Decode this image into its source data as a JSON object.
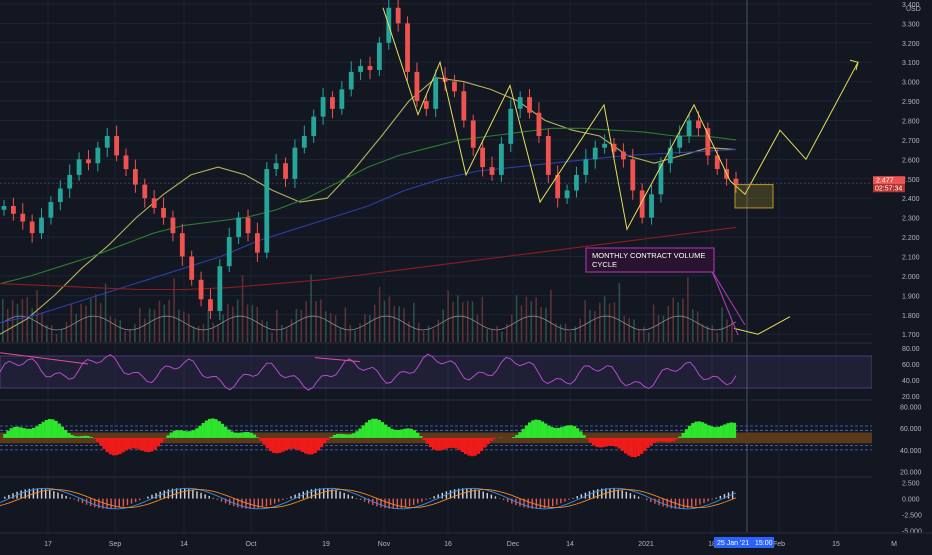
{
  "chart_data": {
    "type": "line",
    "currency": "USD",
    "price_axis": {
      "ticks": [
        "3.400",
        "3.300",
        "3.200",
        "3.100",
        "3.000",
        "2.900",
        "2.800",
        "2.700",
        "2.600",
        "2.500",
        "2.400",
        "2.300",
        "2.200",
        "2.100",
        "2.000",
        "1.900",
        "1.800",
        "1.700"
      ],
      "range": [
        1.66,
        3.42
      ]
    },
    "last_price": "2.477",
    "countdown": "02:57:34",
    "x_axis": {
      "labels": [
        "17",
        "Sep",
        "14",
        "Oct",
        "19",
        "Nov",
        "16",
        "Dec",
        "14",
        "2021",
        "18",
        "Feb",
        "15",
        "M"
      ],
      "crosshair_date": "25 Jan '21",
      "crosshair_time": "15:00"
    },
    "annotation": "MONTHLY CONTRACT VOLUME\nCYCLE",
    "price_candles_close": [
      2.36,
      2.32,
      2.28,
      2.22,
      2.3,
      2.38,
      2.45,
      2.52,
      2.6,
      2.58,
      2.66,
      2.72,
      2.62,
      2.55,
      2.47,
      2.4,
      2.35,
      2.3,
      2.22,
      2.1,
      1.98,
      1.88,
      1.82,
      2.05,
      2.2,
      2.3,
      2.22,
      2.12,
      2.55,
      2.58,
      2.5,
      2.66,
      2.72,
      2.82,
      2.92,
      2.86,
      2.96,
      3.05,
      3.08,
      3.06,
      3.2,
      3.38,
      3.3,
      3.05,
      2.9,
      2.86,
      3.02,
      3.0,
      2.95,
      2.8,
      2.66,
      2.56,
      2.52,
      2.68,
      2.86,
      2.92,
      2.84,
      2.72,
      2.52,
      2.4,
      2.44,
      2.52,
      2.6,
      2.66,
      2.68,
      2.64,
      2.6,
      2.44,
      2.3,
      2.42,
      2.58,
      2.66,
      2.72,
      2.8,
      2.76,
      2.62,
      2.55,
      2.5,
      2.47
    ],
    "moving_averages": [
      {
        "color": "#b5b35c",
        "values": [
          1.7,
          1.78,
          1.9,
          2.04,
          2.16,
          2.3,
          2.42,
          2.52,
          2.56,
          2.52,
          2.44,
          2.38,
          2.4,
          2.55,
          2.72,
          2.9,
          3.02,
          3.0,
          2.96,
          2.9,
          2.8,
          2.75,
          2.72,
          2.62,
          2.58,
          2.62,
          2.66,
          2.65
        ]
      },
      {
        "color": "#2e7d32",
        "values": [
          1.96,
          2.0,
          2.05,
          2.1,
          2.16,
          2.22,
          2.26,
          2.28,
          2.3,
          2.34,
          2.4,
          2.48,
          2.56,
          2.62,
          2.66,
          2.7,
          2.72,
          2.74,
          2.76,
          2.76,
          2.75,
          2.74,
          2.72,
          2.72,
          2.7
        ]
      },
      {
        "color": "#2b3ea8",
        "values": [
          1.76,
          1.8,
          1.86,
          1.92,
          1.98,
          2.04,
          2.1,
          2.18,
          2.24,
          2.3,
          2.36,
          2.44,
          2.5,
          2.54,
          2.56,
          2.58,
          2.6,
          2.62,
          2.63,
          2.64,
          2.65
        ]
      },
      {
        "color": "#8b1e1e",
        "values": [
          1.96,
          1.95,
          1.94,
          1.93,
          1.93,
          1.94,
          1.96,
          1.98,
          2.01,
          2.04,
          2.07,
          2.1,
          2.13,
          2.16,
          2.19,
          2.22,
          2.25
        ]
      }
    ],
    "projections": {
      "zigzag_history": [
        3.38,
        2.83,
        3.1,
        2.52,
        2.98,
        2.38,
        2.88,
        2.24,
        2.88,
        2.49
      ],
      "forecast_price": [
        2.49,
        2.42,
        2.75,
        2.6,
        3.1
      ],
      "forecast_volume_cycle": [
        1.73,
        1.7,
        1.79
      ]
    },
    "rsi": {
      "ticks": [
        "80.00",
        "60.00",
        "40.00",
        "20.00"
      ],
      "band": [
        70,
        30
      ]
    },
    "volume_oscillator": {
      "ticks": [
        "80.000",
        "60.000",
        "40.000",
        "20.000"
      ]
    },
    "macd": {
      "ticks": [
        "2.500",
        "0.000",
        "-2.500",
        "-5.000"
      ]
    }
  }
}
